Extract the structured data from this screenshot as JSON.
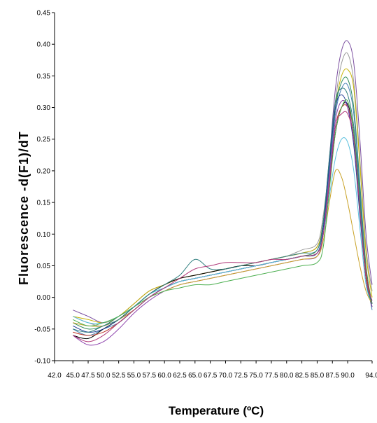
{
  "chart_data": {
    "type": "line",
    "xlabel": "Temperature (ºC)",
    "ylabel": "Fluorescence -d(F1)/dT",
    "xlim": [
      42.0,
      94.0
    ],
    "ylim": [
      -0.1,
      0.45
    ],
    "grid": false,
    "legend": "none",
    "x_ticks": [
      42.0,
      45.0,
      47.5,
      50.0,
      52.5,
      55.0,
      57.5,
      60.0,
      62.5,
      65.0,
      67.5,
      70.0,
      72.5,
      75.0,
      77.5,
      80.0,
      82.5,
      85.0,
      87.5,
      90.0,
      94.0
    ],
    "x_tick_labels": [
      "42.0",
      "45.0",
      "47.5",
      "50.0",
      "52.5",
      "55.0",
      "57.5",
      "60.0",
      "62.5",
      "65.0",
      "67.5",
      "70.0",
      "72.5",
      "75.0",
      "77.5",
      "80.0",
      "82.5",
      "85.0",
      "87.5",
      "90.0",
      "94.0"
    ],
    "y_ticks": [
      -0.1,
      -0.05,
      0.0,
      0.05,
      0.1,
      0.15,
      0.2,
      0.25,
      0.3,
      0.35,
      0.4,
      0.45
    ],
    "y_tick_labels": [
      "-0.10",
      "-0.05",
      "0.00",
      "0.05",
      "0.10",
      "0.15",
      "0.20",
      "0.25",
      "0.30",
      "0.35",
      "0.40",
      "0.45"
    ],
    "x": [
      45.0,
      47.5,
      50.0,
      52.5,
      55.0,
      57.5,
      60.0,
      62.5,
      65.0,
      67.5,
      70.0,
      72.5,
      75.0,
      77.5,
      80.0,
      82.5,
      85.0,
      86.0,
      87.0,
      88.0,
      89.0,
      90.0,
      91.0,
      92.0,
      93.0,
      94.0
    ],
    "series": [
      {
        "color": "#7b4fa0",
        "values": [
          -0.02,
          -0.03,
          -0.04,
          -0.03,
          -0.01,
          0.01,
          0.02,
          0.03,
          0.035,
          0.04,
          0.045,
          0.05,
          0.055,
          0.06,
          0.065,
          0.07,
          0.08,
          0.12,
          0.22,
          0.33,
          0.39,
          0.405,
          0.37,
          0.25,
          0.1,
          0.02
        ]
      },
      {
        "color": "#9a9a9a",
        "values": [
          -0.03,
          -0.04,
          -0.045,
          -0.03,
          -0.015,
          0.005,
          0.02,
          0.03,
          0.035,
          0.04,
          0.045,
          0.05,
          0.055,
          0.06,
          0.065,
          0.075,
          0.085,
          0.13,
          0.21,
          0.31,
          0.37,
          0.385,
          0.34,
          0.22,
          0.08,
          0.01
        ]
      },
      {
        "color": "#c8b400",
        "values": [
          -0.03,
          -0.035,
          -0.04,
          -0.03,
          -0.01,
          0.01,
          0.02,
          0.03,
          0.035,
          0.04,
          0.045,
          0.05,
          0.055,
          0.06,
          0.065,
          0.07,
          0.08,
          0.12,
          0.2,
          0.3,
          0.35,
          0.36,
          0.33,
          0.21,
          0.07,
          0.0
        ]
      },
      {
        "color": "#2e8b57",
        "values": [
          -0.04,
          -0.05,
          -0.045,
          -0.03,
          -0.015,
          0.005,
          0.015,
          0.025,
          0.03,
          0.035,
          0.04,
          0.045,
          0.05,
          0.055,
          0.06,
          0.065,
          0.075,
          0.12,
          0.21,
          0.3,
          0.34,
          0.345,
          0.3,
          0.18,
          0.05,
          -0.01
        ]
      },
      {
        "color": "#4682b4",
        "values": [
          -0.05,
          -0.06,
          -0.05,
          -0.04,
          -0.02,
          0.0,
          0.015,
          0.025,
          0.03,
          0.035,
          0.04,
          0.045,
          0.05,
          0.055,
          0.06,
          0.065,
          0.07,
          0.11,
          0.2,
          0.29,
          0.33,
          0.335,
          0.29,
          0.17,
          0.04,
          -0.02
        ]
      },
      {
        "color": "#000000",
        "values": [
          -0.06,
          -0.065,
          -0.05,
          -0.035,
          -0.015,
          0.005,
          0.02,
          0.03,
          0.035,
          0.04,
          0.045,
          0.05,
          0.05,
          0.055,
          0.06,
          0.065,
          0.07,
          0.1,
          0.18,
          0.26,
          0.3,
          0.305,
          0.26,
          0.15,
          0.03,
          -0.015
        ]
      },
      {
        "color": "#c0392b",
        "values": [
          -0.055,
          -0.06,
          -0.055,
          -0.04,
          -0.02,
          0.0,
          0.015,
          0.025,
          0.03,
          0.035,
          0.04,
          0.045,
          0.05,
          0.055,
          0.06,
          0.065,
          0.07,
          0.1,
          0.19,
          0.27,
          0.3,
          0.3,
          0.26,
          0.15,
          0.04,
          -0.01
        ]
      },
      {
        "color": "#1f3a93",
        "values": [
          -0.045,
          -0.055,
          -0.05,
          -0.035,
          -0.02,
          0.0,
          0.015,
          0.025,
          0.03,
          0.035,
          0.04,
          0.045,
          0.05,
          0.055,
          0.06,
          0.065,
          0.07,
          0.11,
          0.21,
          0.3,
          0.32,
          0.3,
          0.24,
          0.13,
          0.03,
          -0.01
        ]
      },
      {
        "color": "#8e44ad",
        "values": [
          -0.06,
          -0.075,
          -0.07,
          -0.05,
          -0.025,
          -0.005,
          0.01,
          0.02,
          0.025,
          0.03,
          0.035,
          0.04,
          0.045,
          0.05,
          0.055,
          0.06,
          0.065,
          0.1,
          0.19,
          0.28,
          0.31,
          0.3,
          0.25,
          0.14,
          0.03,
          -0.015
        ]
      },
      {
        "color": "#5bc0de",
        "values": [
          -0.03,
          -0.04,
          -0.04,
          -0.03,
          -0.015,
          0.005,
          0.015,
          0.025,
          0.03,
          0.035,
          0.04,
          0.045,
          0.05,
          0.055,
          0.06,
          0.065,
          0.07,
          0.1,
          0.16,
          0.22,
          0.25,
          0.245,
          0.2,
          0.11,
          0.02,
          -0.01
        ]
      },
      {
        "color": "#c9a227",
        "values": [
          -0.04,
          -0.045,
          -0.045,
          -0.035,
          -0.02,
          0.0,
          0.01,
          0.02,
          0.025,
          0.03,
          0.035,
          0.04,
          0.045,
          0.05,
          0.055,
          0.06,
          0.065,
          0.09,
          0.15,
          0.2,
          0.19,
          0.15,
          0.1,
          0.05,
          0.01,
          -0.01
        ]
      },
      {
        "color": "#4caf50",
        "values": [
          -0.035,
          -0.045,
          -0.04,
          -0.03,
          -0.015,
          0.0,
          0.01,
          0.015,
          0.02,
          0.02,
          0.025,
          0.03,
          0.035,
          0.04,
          0.045,
          0.05,
          0.055,
          0.08,
          0.17,
          0.26,
          0.3,
          0.31,
          0.26,
          0.15,
          0.03,
          -0.01
        ]
      },
      {
        "color": "#2f7f7f",
        "values": [
          -0.05,
          -0.055,
          -0.045,
          -0.035,
          -0.015,
          0.005,
          0.02,
          0.035,
          0.06,
          0.045,
          0.045,
          0.05,
          0.055,
          0.06,
          0.065,
          0.07,
          0.075,
          0.12,
          0.22,
          0.31,
          0.33,
          0.32,
          0.27,
          0.16,
          0.03,
          -0.01
        ]
      },
      {
        "color": "#b03a7a",
        "values": [
          -0.06,
          -0.07,
          -0.06,
          -0.04,
          -0.02,
          0.0,
          0.015,
          0.03,
          0.045,
          0.05,
          0.055,
          0.055,
          0.055,
          0.06,
          0.06,
          0.065,
          0.07,
          0.1,
          0.18,
          0.27,
          0.29,
          0.29,
          0.25,
          0.14,
          0.03,
          -0.005
        ]
      }
    ]
  }
}
